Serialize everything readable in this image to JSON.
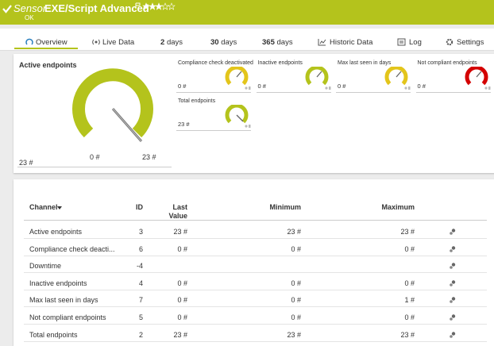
{
  "header": {
    "prefix": "Sensor",
    "title": "EXE/Script Advanced",
    "status": "OK"
  },
  "tabs": [
    "Overview",
    "Live Data",
    {
      "number": "2",
      "unit": "days"
    },
    {
      "number": "30",
      "unit": "days"
    },
    {
      "number": "365",
      "unit": "days"
    },
    "Historic Data",
    "Log",
    "Settings"
  ],
  "gauges": {
    "main": {
      "label": "Active endpoints",
      "value": "23 #",
      "scale_min": "0 #",
      "scale_max": "23 #"
    },
    "small": [
      {
        "label": "Compliance check deactivated",
        "value": "0 #",
        "color": "#e3c51b"
      },
      {
        "label": "Inactive endpoints",
        "value": "0 #",
        "color": "#b4c31c"
      },
      {
        "label": "Max last seen in days",
        "value": "0 #",
        "color": "#e3c51b"
      },
      {
        "label": "Not compliant endpoints",
        "value": "0 #",
        "color": "#d40000"
      },
      {
        "label": "Total endpoints",
        "value": "23 #",
        "color": "#b4c31c"
      }
    ]
  },
  "table": {
    "columns": [
      "Channel",
      "ID",
      "Last Value",
      "Minimum",
      "Maximum"
    ],
    "rows": [
      [
        "Active endpoints",
        "3",
        "23 #",
        "23 #",
        "23 #"
      ],
      [
        "Compliance check deacti...",
        "6",
        "0 #",
        "0 #",
        "0 #"
      ],
      [
        "Downtime",
        "-4",
        null,
        null,
        null
      ],
      [
        "Inactive endpoints",
        "4",
        "0 #",
        "0 #",
        "0 #"
      ],
      [
        "Max last seen in days",
        "7",
        "0 #",
        "0 #",
        "1 #"
      ],
      [
        "Not compliant endpoints",
        "5",
        "0 #",
        "0 #",
        "0 #"
      ],
      [
        "Total endpoints",
        "2",
        "23 #",
        "23 #",
        "23 #"
      ]
    ]
  }
}
